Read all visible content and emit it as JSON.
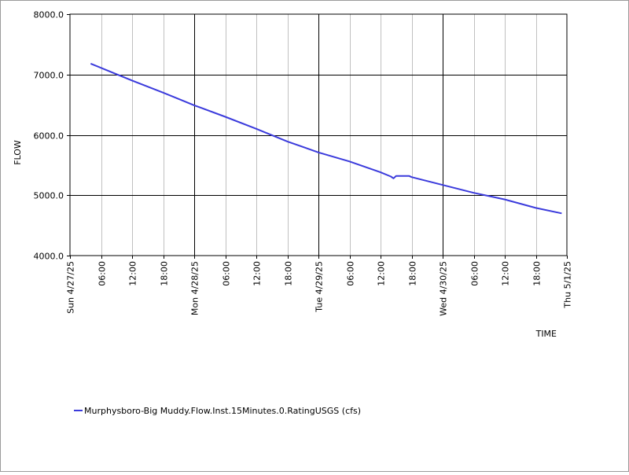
{
  "chart_data": {
    "type": "line",
    "xlabel": "TIME",
    "ylabel": "FLOW",
    "ylim": [
      4000,
      8000
    ],
    "xlim": [
      "2025-04-27T00:00",
      "2025-05-01T00:00"
    ],
    "y_ticks": [
      "4000.0",
      "5000.0",
      "6000.0",
      "7000.0",
      "8000.0"
    ],
    "x_ticks": [
      {
        "label": "Sun 4/27/25",
        "t": "2025-04-27T00:00"
      },
      {
        "label": "06:00",
        "t": "2025-04-27T06:00"
      },
      {
        "label": "12:00",
        "t": "2025-04-27T12:00"
      },
      {
        "label": "18:00",
        "t": "2025-04-27T18:00"
      },
      {
        "label": "Mon 4/28/25",
        "t": "2025-04-28T00:00"
      },
      {
        "label": "06:00",
        "t": "2025-04-28T06:00"
      },
      {
        "label": "12:00",
        "t": "2025-04-28T12:00"
      },
      {
        "label": "18:00",
        "t": "2025-04-28T18:00"
      },
      {
        "label": "Tue 4/29/25",
        "t": "2025-04-29T00:00"
      },
      {
        "label": "06:00",
        "t": "2025-04-29T06:00"
      },
      {
        "label": "12:00",
        "t": "2025-04-29T12:00"
      },
      {
        "label": "18:00",
        "t": "2025-04-29T18:00"
      },
      {
        "label": "Wed 4/30/25",
        "t": "2025-04-30T00:00"
      },
      {
        "label": "06:00",
        "t": "2025-04-30T06:00"
      },
      {
        "label": "12:00",
        "t": "2025-04-30T12:00"
      },
      {
        "label": "18:00",
        "t": "2025-04-30T18:00"
      },
      {
        "label": "Thu 5/1/25",
        "t": "2025-05-01T00:00"
      }
    ],
    "grid": true,
    "legend_position": "bottom-left",
    "series": [
      {
        "name": "Murphysboro-Big Muddy.Flow.Inst.15Minutes.0.RatingUSGS (cfs)",
        "color": "#3b3bdc",
        "points": [
          [
            "2025-04-27T04:00",
            7180
          ],
          [
            "2025-04-27T06:00",
            7110
          ],
          [
            "2025-04-27T12:00",
            6900
          ],
          [
            "2025-04-27T18:00",
            6700
          ],
          [
            "2025-04-28T00:00",
            6490
          ],
          [
            "2025-04-28T06:00",
            6300
          ],
          [
            "2025-04-28T12:00",
            6100
          ],
          [
            "2025-04-28T18:00",
            5890
          ],
          [
            "2025-04-29T00:00",
            5710
          ],
          [
            "2025-04-29T06:00",
            5560
          ],
          [
            "2025-04-29T12:00",
            5380
          ],
          [
            "2025-04-29T14:00",
            5310
          ],
          [
            "2025-04-29T14:30",
            5280
          ],
          [
            "2025-04-29T15:00",
            5320
          ],
          [
            "2025-04-29T17:30",
            5320
          ],
          [
            "2025-04-29T18:00",
            5300
          ],
          [
            "2025-04-30T00:00",
            5170
          ],
          [
            "2025-04-30T06:00",
            5040
          ],
          [
            "2025-04-30T12:00",
            4930
          ],
          [
            "2025-04-30T18:00",
            4790
          ],
          [
            "2025-04-30T23:00",
            4700
          ]
        ]
      }
    ]
  }
}
